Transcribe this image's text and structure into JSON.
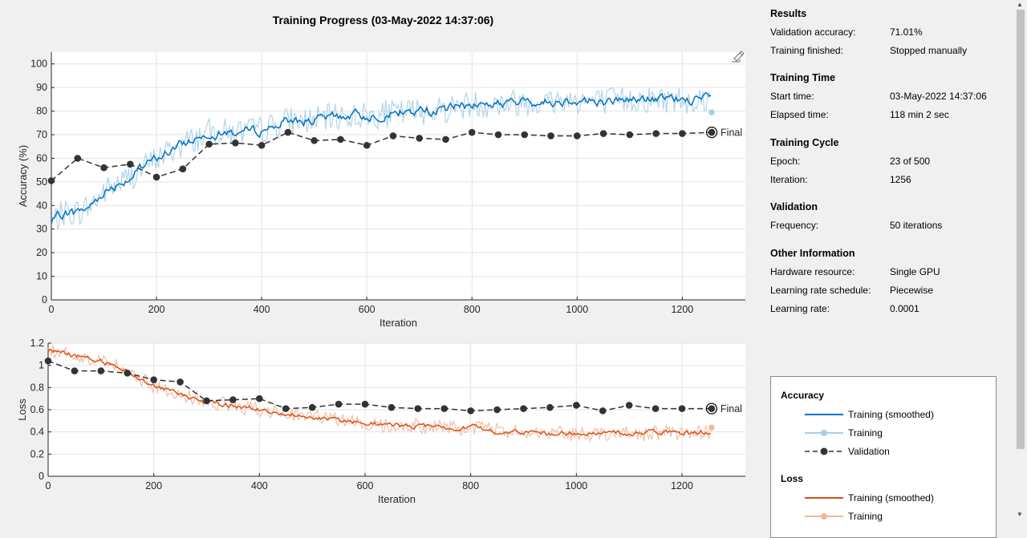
{
  "window": {
    "title": "Training Progress (03-May-2022 14:37:06)"
  },
  "sidebar": {
    "sections": [
      {
        "title": "Results",
        "rows": [
          {
            "label": "Validation accuracy:",
            "value": "71.01%"
          },
          {
            "label": "Training finished:",
            "value": "Stopped manually"
          }
        ]
      },
      {
        "title": "Training Time",
        "rows": [
          {
            "label": "Start time:",
            "value": "03-May-2022 14:37:06"
          },
          {
            "label": "Elapsed time:",
            "value": "118 min 2 sec"
          }
        ]
      },
      {
        "title": "Training Cycle",
        "rows": [
          {
            "label": "Epoch:",
            "value": "23 of 500"
          },
          {
            "label": "Iteration:",
            "value": "1256"
          }
        ]
      },
      {
        "title": "Validation",
        "rows": [
          {
            "label": "Frequency:",
            "value": "50 iterations"
          }
        ]
      },
      {
        "title": "Other Information",
        "rows": [
          {
            "label": "Hardware resource:",
            "value": "Single GPU"
          },
          {
            "label": "Learning rate schedule:",
            "value": "Piecewise"
          },
          {
            "label": "Learning rate:",
            "value": "0.0001"
          }
        ]
      }
    ]
  },
  "legend": {
    "groups": [
      {
        "title": "Accuracy",
        "items": [
          {
            "label": "Training (smoothed)",
            "style": "line",
            "color": "#0072bd"
          },
          {
            "label": "Training",
            "style": "light-marker",
            "color": "#a9cfe8"
          },
          {
            "label": "Validation",
            "style": "dashed-marker",
            "color": "#333333"
          }
        ]
      },
      {
        "title": "Loss",
        "items": [
          {
            "label": "Training (smoothed)",
            "style": "line",
            "color": "#d95319"
          },
          {
            "label": "Training",
            "style": "light-marker",
            "color": "#f0b9a0"
          }
        ]
      }
    ]
  },
  "chart_data": [
    {
      "type": "line",
      "name": "accuracy",
      "xlabel": "Iteration",
      "ylabel": "Accuracy (%)",
      "xlim": [
        0,
        1320
      ],
      "ylim": [
        0,
        105
      ],
      "xticks": [
        0,
        200,
        400,
        600,
        800,
        1000,
        1200
      ],
      "yticks": [
        0,
        10,
        20,
        30,
        40,
        50,
        60,
        70,
        80,
        90,
        100
      ],
      "grid": true,
      "final_label": "Final",
      "training_final_point": {
        "x": 1256,
        "y": 79.5
      },
      "smoothed_anchors": {
        "x": [
          0,
          25,
          50,
          75,
          100,
          150,
          200,
          250,
          300,
          350,
          400,
          450,
          500,
          550,
          600,
          650,
          700,
          750,
          800,
          850,
          900,
          950,
          1000,
          1050,
          1100,
          1150,
          1200,
          1256
        ],
        "y": [
          33,
          37,
          37,
          40,
          46,
          52,
          60,
          66,
          71,
          71,
          72,
          76,
          76,
          78,
          78,
          79,
          80,
          81,
          83,
          83,
          84,
          84,
          85,
          84,
          85,
          85,
          85,
          85
        ]
      },
      "validation": {
        "x": [
          0,
          50,
          100,
          150,
          200,
          250,
          300,
          350,
          400,
          450,
          500,
          550,
          600,
          650,
          700,
          750,
          800,
          850,
          900,
          950,
          1000,
          1050,
          1100,
          1150,
          1200,
          1256
        ],
        "y": [
          50.5,
          60,
          56,
          57.5,
          52,
          55.5,
          66,
          66.5,
          65.5,
          71,
          67.5,
          68,
          65.5,
          69.5,
          68.5,
          68,
          71,
          70,
          70,
          69.5,
          69.5,
          70.5,
          70,
          70.5,
          70.5,
          71
        ]
      }
    },
    {
      "type": "line",
      "name": "loss",
      "xlabel": "Iteration",
      "ylabel": "Loss",
      "xlim": [
        0,
        1320
      ],
      "ylim": [
        0,
        1.2
      ],
      "xticks": [
        0,
        200,
        400,
        600,
        800,
        1000,
        1200
      ],
      "yticks": [
        0,
        0.2,
        0.4,
        0.6,
        0.8,
        1,
        1.2
      ],
      "grid": true,
      "final_label": "Final",
      "training_final_point": {
        "x": 1256,
        "y": 0.44
      },
      "smoothed_anchors": {
        "x": [
          0,
          25,
          50,
          75,
          100,
          150,
          200,
          250,
          300,
          350,
          400,
          450,
          500,
          550,
          600,
          650,
          700,
          750,
          800,
          850,
          900,
          950,
          1000,
          1050,
          1100,
          1150,
          1200,
          1256
        ],
        "y": [
          1.13,
          1.12,
          1.09,
          1.06,
          1.04,
          0.95,
          0.82,
          0.73,
          0.67,
          0.63,
          0.61,
          0.57,
          0.54,
          0.5,
          0.48,
          0.46,
          0.45,
          0.44,
          0.44,
          0.41,
          0.4,
          0.39,
          0.38,
          0.39,
          0.38,
          0.39,
          0.39,
          0.39
        ]
      },
      "validation": {
        "x": [
          0,
          50,
          100,
          150,
          200,
          250,
          300,
          350,
          400,
          450,
          500,
          550,
          600,
          650,
          700,
          750,
          800,
          850,
          900,
          950,
          1000,
          1050,
          1100,
          1150,
          1200,
          1256
        ],
        "y": [
          1.04,
          0.95,
          0.95,
          0.93,
          0.87,
          0.85,
          0.68,
          0.69,
          0.7,
          0.61,
          0.62,
          0.65,
          0.65,
          0.62,
          0.61,
          0.61,
          0.59,
          0.6,
          0.61,
          0.62,
          0.64,
          0.59,
          0.64,
          0.61,
          0.61,
          0.61
        ]
      }
    }
  ]
}
